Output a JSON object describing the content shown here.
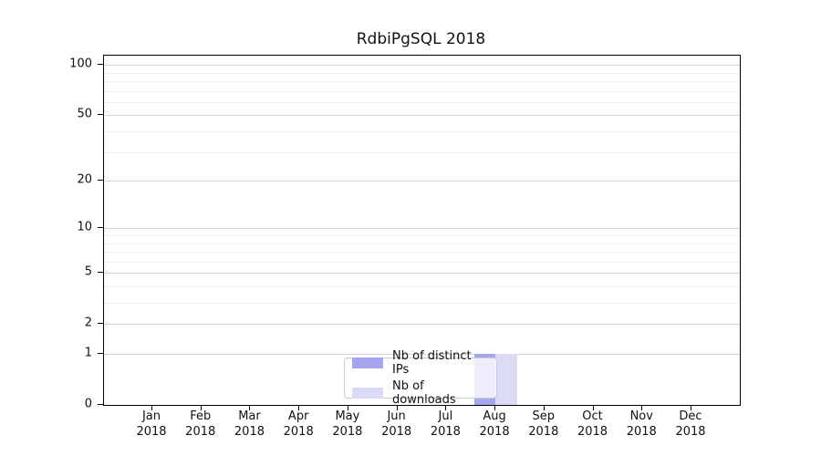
{
  "chart_data": {
    "type": "bar",
    "title": "RdbiPgSQL 2018",
    "categories": [
      "Jan",
      "Feb",
      "Mar",
      "Apr",
      "May",
      "Jun",
      "Jul",
      "Aug",
      "Sep",
      "Oct",
      "Nov",
      "Dec"
    ],
    "x_tick_second_line": "2018",
    "series": [
      {
        "name": "Nb of distinct IPs",
        "color": "#a5a5f0",
        "values": [
          0,
          0,
          0,
          0,
          0,
          0,
          0,
          1,
          0,
          0,
          0,
          0
        ]
      },
      {
        "name": "Nb of downloads",
        "color": "#dbdbf8",
        "values": [
          0,
          0,
          0,
          0,
          0,
          0,
          0,
          1,
          0,
          0,
          0,
          0
        ]
      }
    ],
    "yscale": "log1p",
    "ylim": [
      0,
      101
    ],
    "y_tick_values": [
      0,
      1,
      2,
      5,
      10,
      20,
      50,
      100
    ],
    "y_tick_labels": [
      "0",
      "1",
      "2",
      "5",
      "10",
      "20",
      "50",
      "100"
    ],
    "y_minor_gridline_values": [
      3,
      4,
      6,
      7,
      8,
      9,
      30,
      40,
      60,
      70,
      80,
      90
    ],
    "grid": true,
    "legend_position": "bottom-center-inside",
    "colors": {
      "axis": "#000000",
      "major_grid": "#d6d6d6",
      "minor_grid": "#eeeeee",
      "background": "#ffffff"
    }
  }
}
